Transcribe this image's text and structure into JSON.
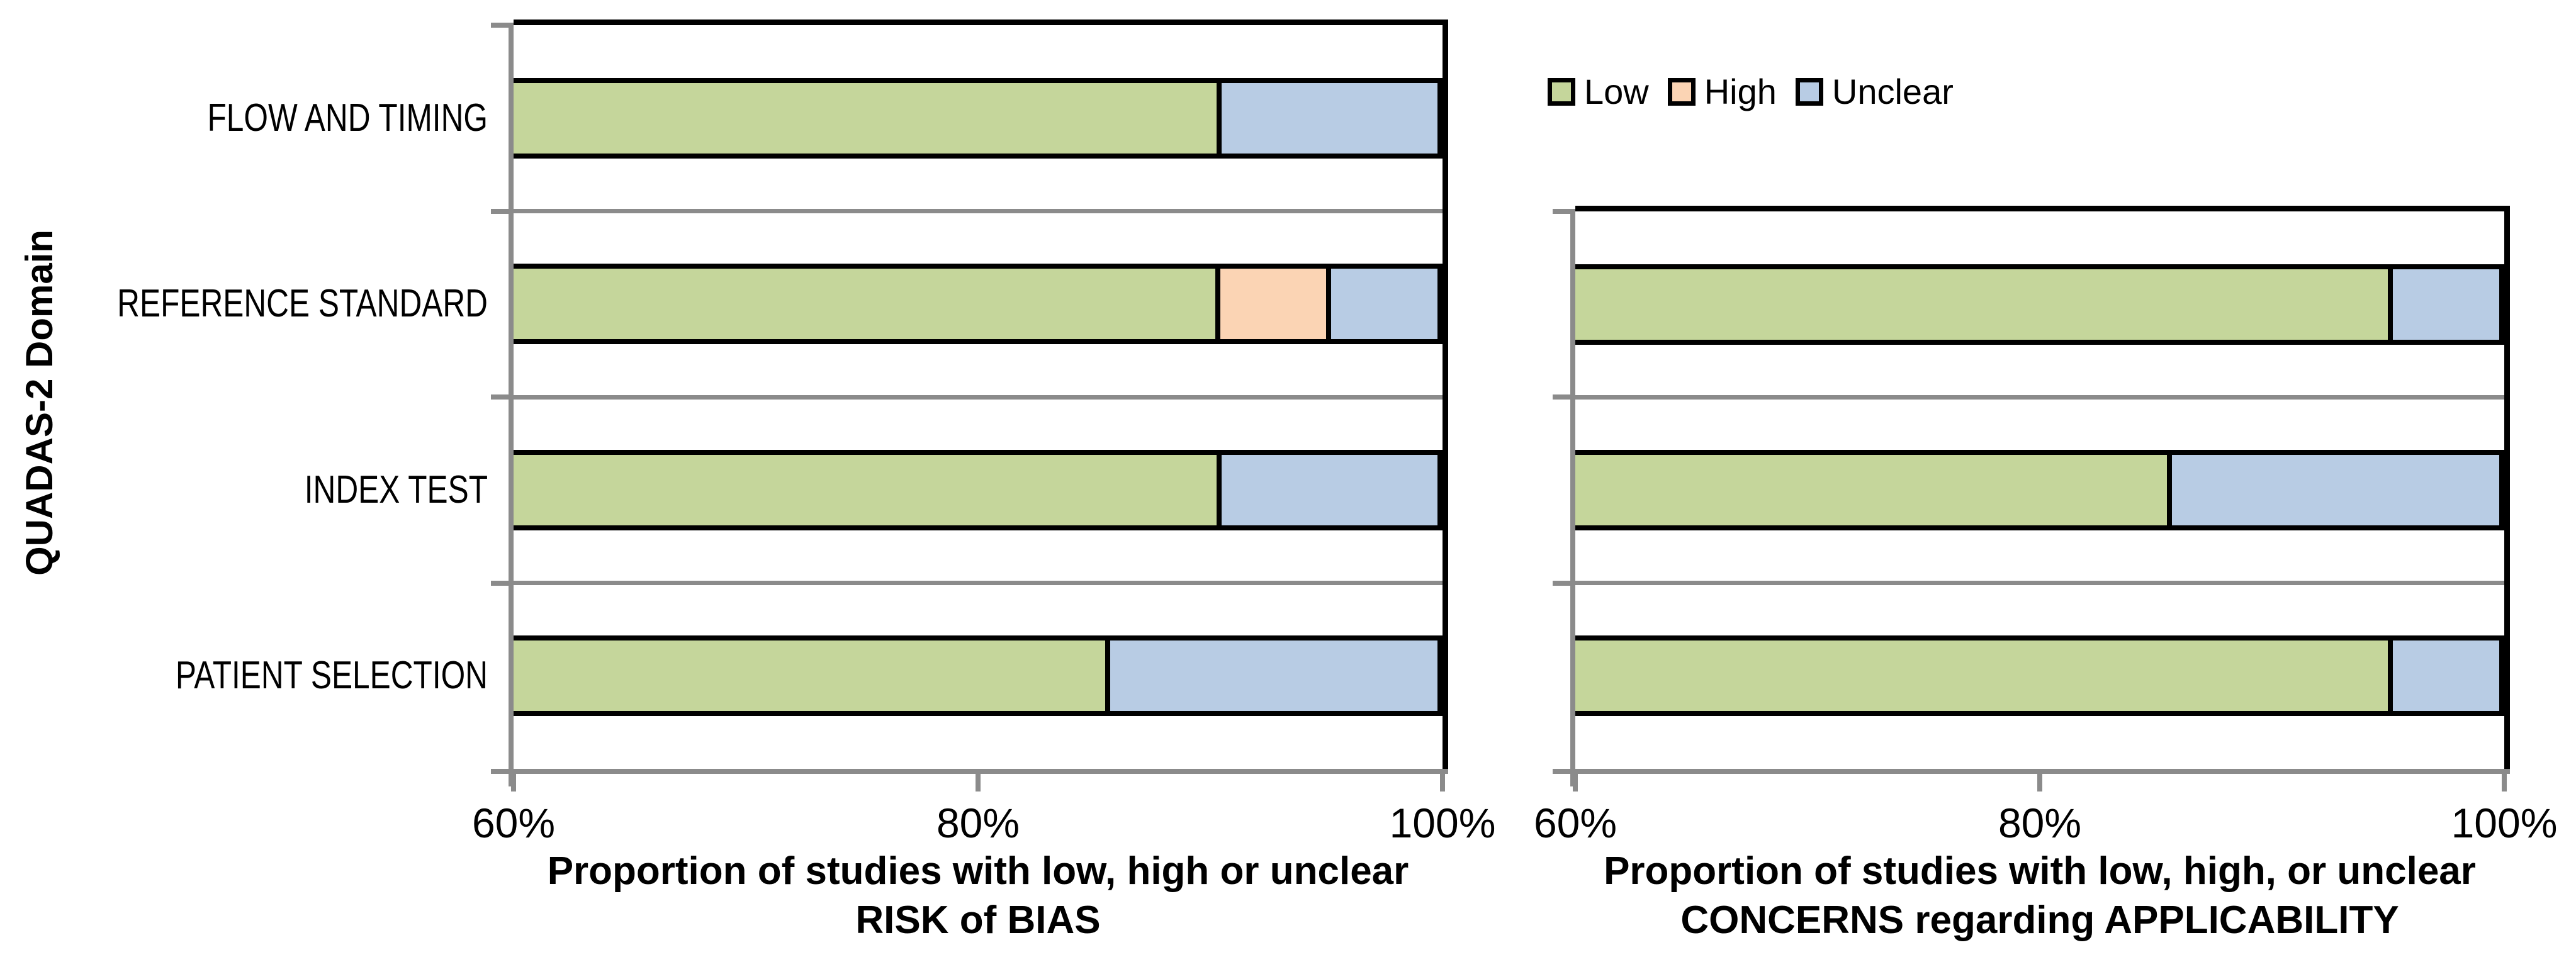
{
  "y_axis_title": "QUADAS-2 Domain",
  "colors": {
    "low": "#C5D69B",
    "high": "#FBD4B4",
    "unclear": "#B8CCE4",
    "grid": "#8B8B8B",
    "black": "#000000"
  },
  "legend": {
    "items": [
      {
        "label": "Low",
        "key": "low"
      },
      {
        "label": "High",
        "key": "high"
      },
      {
        "label": "Unclear",
        "key": "unclear"
      }
    ]
  },
  "chart_data": [
    {
      "type": "bar",
      "subtype": "horizontal-stacked",
      "xlabel_lines": [
        "Proportion of studies with low, high or unclear",
        "RISK of BIAS"
      ],
      "x_min": 60,
      "x_max": 100,
      "x_ticks": [
        "60%",
        "80%",
        "100%"
      ],
      "grid": true,
      "legend_position": "top-right",
      "categories": [
        "FLOW AND TIMING",
        "REFERENCE STANDARD",
        "INDEX TEST",
        "PATIENT SELECTION"
      ],
      "series": [
        {
          "name": "Low",
          "key": "low",
          "values": [
            90.5,
            90.5,
            90.5,
            85.7
          ]
        },
        {
          "name": "High",
          "key": "high",
          "values": [
            0,
            4.8,
            0,
            0
          ]
        },
        {
          "name": "Unclear",
          "key": "unclear",
          "values": [
            9.5,
            4.8,
            9.5,
            14.3
          ]
        }
      ]
    },
    {
      "type": "bar",
      "subtype": "horizontal-stacked",
      "xlabel_lines": [
        "Proportion of studies with low, high, or unclear",
        "CONCERNS regarding APPLICABILITY"
      ],
      "x_min": 60,
      "x_max": 100,
      "x_ticks": [
        "60%",
        "80%",
        "100%"
      ],
      "grid": true,
      "categories": [
        "REFERENCE STANDARD",
        "INDEX TEST",
        "PATIENT SELECTION"
      ],
      "series": [
        {
          "name": "Low",
          "key": "low",
          "values": [
            95.2,
            85.7,
            95.2
          ]
        },
        {
          "name": "High",
          "key": "high",
          "values": [
            0,
            0,
            0
          ]
        },
        {
          "name": "Unclear",
          "key": "unclear",
          "values": [
            4.8,
            14.3,
            4.8
          ]
        }
      ]
    }
  ]
}
